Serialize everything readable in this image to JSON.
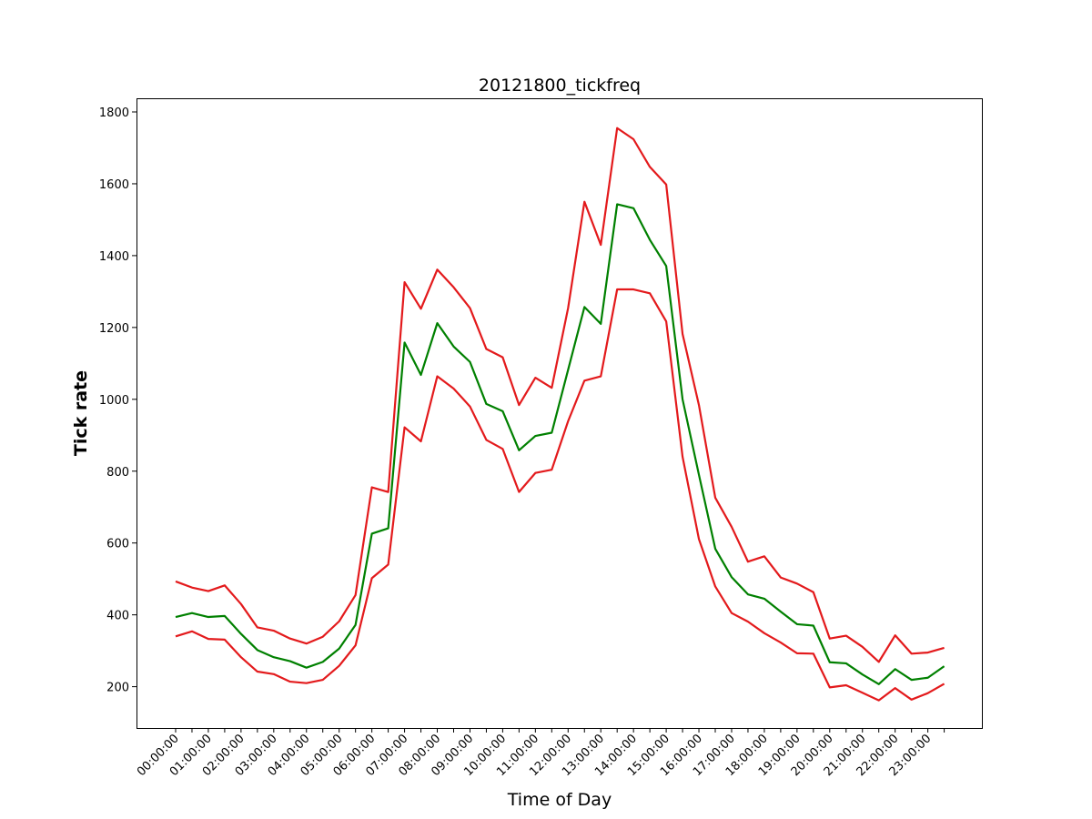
{
  "chart_data": {
    "type": "line",
    "title": "20121800_tickfreq",
    "xlabel": "Time of Day",
    "ylabel": "Tick rate",
    "ylim": [
      85,
      1838
    ],
    "yticks": [
      200,
      400,
      600,
      800,
      1000,
      1200,
      1400,
      1600,
      1800
    ],
    "xtick_labels": [
      "00:00:00",
      "01:00:00",
      "02:00:00",
      "03:00:00",
      "04:00:00",
      "05:00:00",
      "06:00:00",
      "07:00:00",
      "08:00:00",
      "09:00:00",
      "10:00:00",
      "11:00:00",
      "12:00:00",
      "13:00:00",
      "14:00:00",
      "15:00:00",
      "16:00:00",
      "17:00:00",
      "18:00:00",
      "19:00:00",
      "20:00:00",
      "21:00:00",
      "22:00:00",
      "23:00:00"
    ],
    "x": [
      "00:00:00",
      "00:30:00",
      "01:00:00",
      "01:30:00",
      "02:00:00",
      "02:30:00",
      "03:00:00",
      "03:30:00",
      "04:00:00",
      "04:30:00",
      "05:00:00",
      "05:30:00",
      "06:00:00",
      "06:30:00",
      "07:00:00",
      "07:30:00",
      "08:00:00",
      "08:30:00",
      "09:00:00",
      "09:30:00",
      "10:00:00",
      "10:30:00",
      "11:00:00",
      "11:30:00",
      "12:00:00",
      "12:30:00",
      "13:00:00",
      "13:30:00",
      "14:00:00",
      "14:30:00",
      "15:00:00",
      "15:30:00",
      "16:00:00",
      "16:30:00",
      "17:00:00",
      "17:30:00",
      "18:00:00",
      "18:30:00",
      "19:00:00",
      "19:30:00",
      "20:00:00",
      "20:30:00",
      "21:00:00",
      "21:30:00",
      "22:00:00",
      "22:30:00",
      "23:00:00",
      "23:30:00"
    ],
    "grid": false,
    "series": [
      {
        "color": "#e31a1c",
        "values": [
          493,
          476,
          466,
          482,
          430,
          365,
          356,
          334,
          320,
          339,
          382,
          455,
          755,
          742,
          1326,
          1252,
          1361,
          1312,
          1254,
          1140,
          1117,
          984,
          1060,
          1032,
          1254,
          1550,
          1430,
          1755,
          1724,
          1647,
          1598,
          1182,
          984,
          726,
          645,
          548,
          563,
          504,
          487,
          463,
          334,
          342,
          311,
          269,
          343,
          292,
          295,
          308
        ]
      },
      {
        "color": "#008000",
        "values": [
          394,
          405,
          394,
          397,
          347,
          302,
          282,
          271,
          253,
          269,
          306,
          372,
          626,
          641,
          1158,
          1068,
          1212,
          1147,
          1104,
          987,
          967,
          858,
          898,
          907,
          1082,
          1257,
          1210,
          1543,
          1532,
          1444,
          1371,
          1000,
          790,
          584,
          505,
          457,
          445,
          409,
          374,
          370,
          268,
          265,
          234,
          207,
          249,
          219,
          225,
          257
        ]
      },
      {
        "color": "#e31a1c",
        "values": [
          340,
          354,
          333,
          331,
          282,
          242,
          235,
          214,
          210,
          219,
          258,
          315,
          502,
          540,
          922,
          883,
          1064,
          1030,
          980,
          887,
          862,
          742,
          795,
          804,
          939,
          1052,
          1064,
          1306,
          1306,
          1295,
          1217,
          840,
          611,
          479,
          405,
          381,
          349,
          323,
          293,
          292,
          198,
          204,
          183,
          162,
          196,
          164,
          182,
          208
        ]
      }
    ]
  }
}
